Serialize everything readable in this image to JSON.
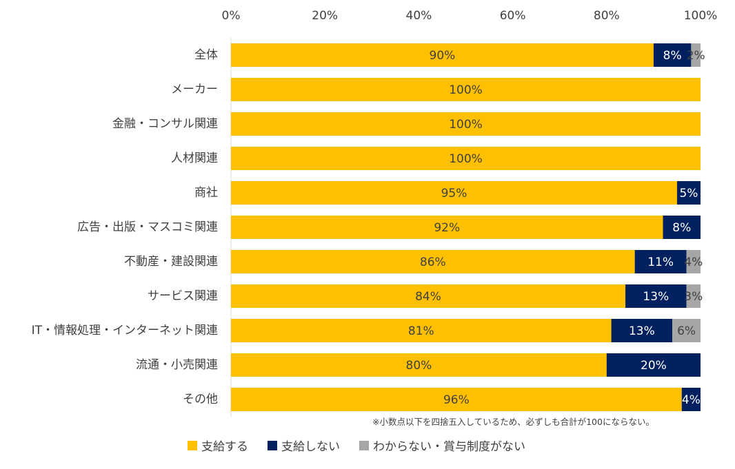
{
  "chart_data": {
    "type": "bar",
    "orientation": "horizontal",
    "stacked": true,
    "categories": [
      "全体",
      "メーカー",
      "金融・コンサル関連",
      "人材関連",
      "商社",
      "広告・出版・マスコミ関連",
      "不動産・建設関連",
      "サービス関連",
      "IT・情報処理・インターネット関連",
      "流通・小売関連",
      "その他"
    ],
    "series": [
      {
        "name": "支給する",
        "color": "#FFC000",
        "label_color": "#404040",
        "values": [
          90,
          100,
          100,
          100,
          95,
          92,
          86,
          84,
          81,
          80,
          96
        ]
      },
      {
        "name": "支給しない",
        "color": "#002060",
        "label_color": "#ffffff",
        "values": [
          8,
          0,
          0,
          0,
          5,
          8,
          11,
          13,
          13,
          20,
          4
        ]
      },
      {
        "name": "わからない・賞与制度がない",
        "color": "#A6A6A6",
        "label_color": "#404040",
        "values": [
          2,
          0,
          0,
          0,
          0,
          0,
          4,
          3,
          6,
          0,
          0
        ]
      }
    ],
    "xlim": [
      0,
      100
    ],
    "xticks": [
      "0%",
      "20%",
      "40%",
      "60%",
      "80%",
      "100%"
    ],
    "tick_values": [
      0,
      20,
      40,
      60,
      80,
      100
    ],
    "value_suffix": "%",
    "legend_position": "bottom",
    "note": "※小数点以下を四捨五入しているため、必ずしも合計が100にならない。"
  }
}
